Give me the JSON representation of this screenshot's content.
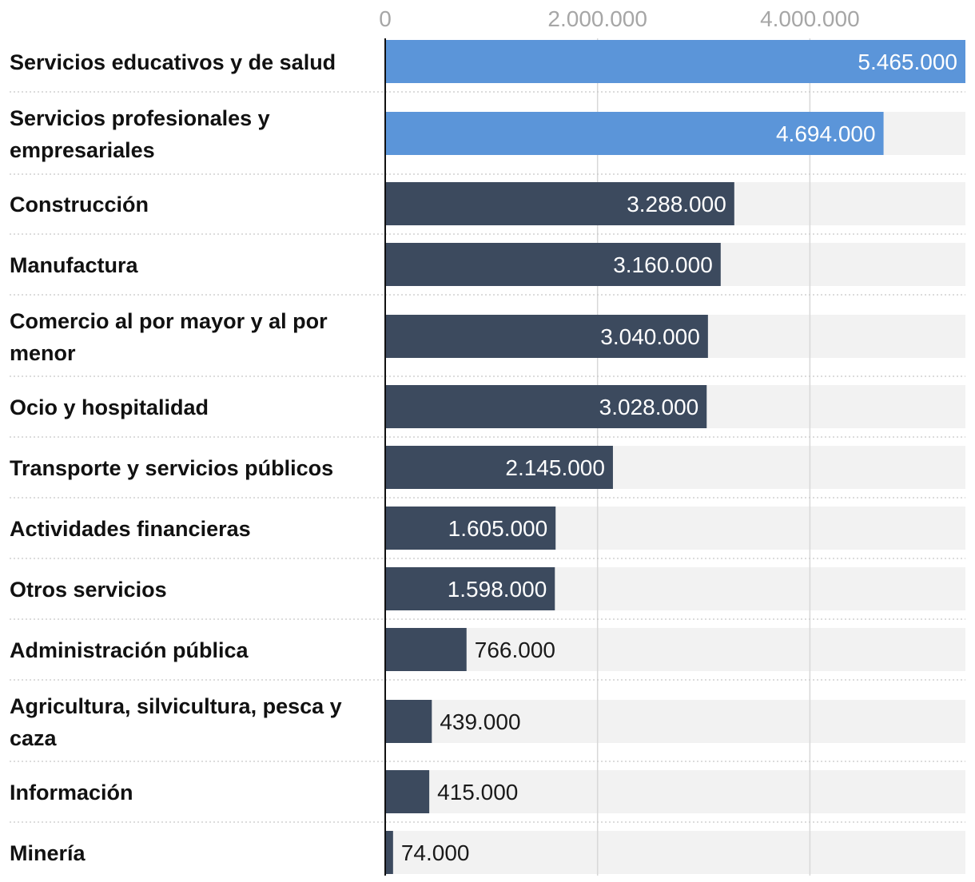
{
  "chart_data": {
    "type": "bar",
    "orientation": "horizontal",
    "title": "",
    "xlabel": "",
    "ylabel": "",
    "xlim": [
      0,
      5465000
    ],
    "x_ticks": [
      0,
      2000000,
      4000000
    ],
    "x_tick_labels": [
      "0",
      "2.000.000",
      "4.000.000"
    ],
    "grid": true,
    "colors": {
      "highlight": "#5b95d9",
      "default": "#3c4a5e",
      "track": "#f2f2f2",
      "grid": "#d8d8d8",
      "axis": "#111111"
    },
    "categories": [
      "Servicios educativos y de salud",
      "Servicios profesionales y empresariales",
      "Construcción",
      "Manufactura",
      "Comercio al por mayor y al por menor",
      "Ocio y hospitalidad",
      "Transporte y servicios públicos",
      "Actividades financieras",
      "Otros servicios",
      "Administración pública",
      "Agricultura, silvicultura, pesca y caza",
      "Información",
      "Minería"
    ],
    "values": [
      5465000,
      4694000,
      3288000,
      3160000,
      3040000,
      3028000,
      2145000,
      1605000,
      1598000,
      766000,
      439000,
      415000,
      74000
    ],
    "value_labels": [
      "5.465.000",
      "4.694.000",
      "3.288.000",
      "3.160.000",
      "3.040.000",
      "3.028.000",
      "2.145.000",
      "1.605.000",
      "1.598.000",
      "766.000",
      "439.000",
      "415.000",
      "74.000"
    ],
    "highlighted": [
      true,
      true,
      false,
      false,
      false,
      false,
      false,
      false,
      false,
      false,
      false,
      false,
      false
    ]
  }
}
